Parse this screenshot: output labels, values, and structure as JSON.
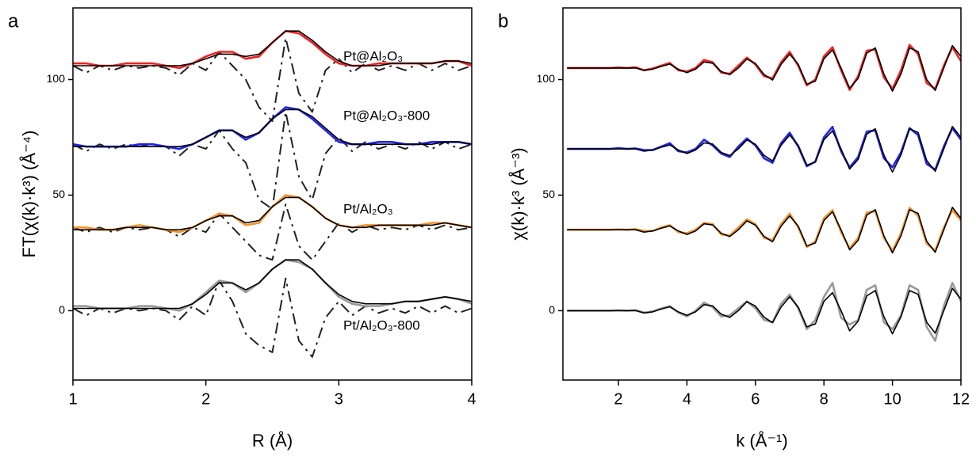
{
  "chart_data": [
    {
      "type": "line",
      "panel_label": "a",
      "x_label": "R (Å)",
      "y_label": "FT(χ(k)·k³) (Å⁻⁴)",
      "xlim": [
        1,
        4
      ],
      "ylim": [
        -30,
        131
      ],
      "xticks": [
        1,
        2,
        3,
        4
      ],
      "yticks": [
        0,
        50,
        100
      ],
      "x": [
        1.0,
        1.1,
        1.2,
        1.3,
        1.4,
        1.5,
        1.6,
        1.7,
        1.8,
        1.9,
        2.0,
        2.1,
        2.2,
        2.3,
        2.4,
        2.5,
        2.6,
        2.7,
        2.8,
        2.9,
        3.0,
        3.1,
        3.2,
        3.3,
        3.4,
        3.5,
        3.6,
        3.7,
        3.8,
        3.9,
        4.0
      ],
      "series": [
        {
          "style": "dashed",
          "color": "#222222",
          "values": [
            106,
            103,
            106,
            104,
            106,
            105,
            106,
            105,
            102,
            107,
            104,
            112,
            106,
            100,
            88,
            82,
            118,
            94,
            86,
            104,
            109,
            103,
            107,
            104,
            106,
            104,
            107,
            104,
            107,
            104,
            106
          ]
        },
        {
          "name": "Pt@Al₂O₃",
          "style": "solid",
          "color": "#ee2222",
          "values": [
            107,
            107,
            106,
            106,
            107,
            107,
            107,
            106,
            105,
            107,
            110,
            112,
            112,
            109,
            110,
            116,
            121,
            120,
            116,
            111,
            107,
            106,
            106,
            107,
            107,
            107,
            107,
            107,
            108,
            108,
            106
          ]
        },
        {
          "style": "fit",
          "color": "#000000",
          "values": [
            106,
            106,
            106,
            106,
            106,
            106,
            106,
            106,
            106,
            107,
            109,
            111,
            111,
            110,
            111,
            116,
            121,
            121,
            117,
            112,
            108,
            106,
            106,
            106,
            107,
            107,
            107,
            107,
            108,
            108,
            107
          ]
        },
        {
          "style": "dashed",
          "color": "#222222",
          "values": [
            72,
            69,
            72,
            70,
            72,
            71,
            72,
            71,
            67,
            72,
            70,
            78,
            70,
            64,
            48,
            44,
            86,
            58,
            48,
            68,
            75,
            69,
            73,
            70,
            72,
            70,
            73,
            70,
            73,
            70,
            72
          ]
        },
        {
          "name": "Pt@Al₂O₃-800",
          "style": "solid",
          "color": "#2222ee",
          "values": [
            72,
            71,
            71,
            71,
            71,
            72,
            72,
            71,
            70,
            72,
            75,
            78,
            78,
            74,
            77,
            83,
            88,
            87,
            83,
            78,
            73,
            72,
            72,
            73,
            73,
            72,
            72,
            73,
            73,
            73,
            72
          ]
        },
        {
          "style": "fit",
          "color": "#000000",
          "values": [
            71,
            71,
            71,
            71,
            71,
            71,
            71,
            71,
            71,
            72,
            75,
            78,
            78,
            75,
            77,
            83,
            87,
            87,
            84,
            79,
            74,
            72,
            72,
            72,
            72,
            72,
            72,
            72,
            73,
            73,
            72
          ]
        },
        {
          "style": "dashed",
          "color": "#222222",
          "values": [
            36,
            34,
            36,
            34,
            36,
            35,
            36,
            35,
            32,
            36,
            34,
            42,
            36,
            30,
            24,
            22,
            46,
            28,
            22,
            30,
            38,
            34,
            37,
            35,
            36,
            35,
            37,
            35,
            37,
            35,
            36
          ]
        },
        {
          "name": "Pt/Al₂O₃",
          "style": "solid",
          "color": "#f5922a",
          "values": [
            36,
            36,
            35,
            35,
            36,
            37,
            36,
            35,
            34,
            36,
            39,
            42,
            41,
            37,
            38,
            45,
            50,
            49,
            45,
            40,
            37,
            36,
            37,
            37,
            37,
            37,
            37,
            38,
            38,
            37,
            36
          ]
        },
        {
          "style": "fit",
          "color": "#000000",
          "values": [
            35,
            35,
            35,
            35,
            36,
            36,
            36,
            35,
            35,
            36,
            39,
            41,
            41,
            38,
            39,
            45,
            49,
            49,
            45,
            40,
            37,
            36,
            36,
            37,
            37,
            37,
            37,
            37,
            38,
            37,
            36
          ]
        },
        {
          "style": "dashed",
          "color": "#222222",
          "values": [
            1,
            -2,
            1,
            -1,
            1,
            0,
            1,
            0,
            -4,
            2,
            -2,
            13,
            4,
            -10,
            -15,
            -18,
            14,
            -13,
            -20,
            -3,
            4,
            -2,
            2,
            -1,
            1,
            -1,
            2,
            -1,
            2,
            -1,
            1
          ]
        },
        {
          "name": "Pt/Al₂O₃-800",
          "style": "solid",
          "color": "#999999",
          "values": [
            2,
            2,
            1,
            1,
            1,
            2,
            2,
            1,
            0,
            3,
            8,
            13,
            12,
            8,
            12,
            18,
            22,
            21,
            18,
            12,
            6,
            3,
            2,
            2,
            3,
            4,
            4,
            5,
            6,
            5,
            3
          ]
        },
        {
          "style": "fit",
          "color": "#000000",
          "values": [
            1,
            1,
            1,
            1,
            1,
            1,
            1,
            1,
            1,
            3,
            7,
            12,
            12,
            9,
            12,
            18,
            22,
            22,
            18,
            12,
            7,
            4,
            3,
            3,
            3,
            4,
            4,
            5,
            6,
            5,
            4
          ]
        }
      ]
    },
    {
      "type": "line",
      "panel_label": "b",
      "x_label": "k (Å⁻¹)",
      "y_label": "χ(k)·k³ (Å⁻³)",
      "xlim": [
        0.38,
        12
      ],
      "ylim": [
        -30,
        131
      ],
      "xticks": [
        2,
        4,
        6,
        8,
        10,
        12
      ],
      "yticks": [
        0,
        50,
        100
      ],
      "x": [
        0.5,
        0.75,
        1.0,
        1.25,
        1.5,
        1.75,
        2.0,
        2.25,
        2.5,
        2.75,
        3.0,
        3.25,
        3.5,
        3.75,
        4.0,
        4.25,
        4.5,
        4.75,
        5.0,
        5.25,
        5.5,
        5.75,
        6.0,
        6.25,
        6.5,
        6.75,
        7.0,
        7.25,
        7.5,
        7.75,
        8.0,
        8.25,
        8.5,
        8.75,
        9.0,
        9.25,
        9.5,
        9.75,
        10.0,
        10.25,
        10.5,
        10.75,
        11.0,
        11.25,
        11.5,
        11.75,
        12.0
      ],
      "series": [
        {
          "style": "solid",
          "color": "#ee2222",
          "values": [
            105,
            105,
            105,
            105,
            105,
            105,
            105.2,
            105,
            105.3,
            104,
            104.8,
            106,
            107.2,
            104,
            103.5,
            105,
            108.5,
            107.5,
            103,
            102.5,
            106,
            109.5,
            106.5,
            101.5,
            100.5,
            107.5,
            112,
            106,
            97.5,
            100,
            110,
            114,
            104,
            95.5,
            101.5,
            112.5,
            113,
            101,
            96,
            104,
            115,
            111,
            98.5,
            96,
            106,
            114,
            108
          ]
        },
        {
          "style": "fit",
          "color": "#000000",
          "values": [
            105,
            105,
            105,
            105,
            105,
            105,
            105,
            105,
            105,
            104,
            104.5,
            105.7,
            106.7,
            104.5,
            103,
            104.5,
            107.6,
            107.1,
            103.5,
            102.1,
            105,
            108.9,
            107,
            102.2,
            99.8,
            106.6,
            111,
            106.6,
            98,
            99.3,
            109,
            112.8,
            105,
            96.3,
            100.5,
            111.4,
            113.7,
            102.4,
            95,
            102.4,
            113.7,
            112.1,
            100,
            95.3,
            105,
            114.7,
            110
          ]
        },
        {
          "style": "solid",
          "color": "#2222ee",
          "values": [
            70,
            70,
            70,
            70,
            70,
            70,
            70.3,
            70,
            70.2,
            69.5,
            69.5,
            71,
            72.5,
            69,
            68.5,
            70,
            74,
            71.5,
            68,
            66.5,
            71,
            74.5,
            71.5,
            66,
            64,
            72.5,
            77,
            71,
            62.5,
            64.5,
            75,
            79.5,
            69,
            62,
            66.5,
            77.5,
            78,
            66,
            62,
            68.5,
            79,
            76,
            63.5,
            61,
            71,
            79,
            74
          ]
        },
        {
          "style": "fit",
          "color": "#000000",
          "values": [
            70,
            70,
            70,
            70,
            70,
            70,
            70,
            70,
            70,
            69,
            69.5,
            70.7,
            71.7,
            69.5,
            68,
            69.5,
            72.6,
            72.1,
            68.5,
            67.1,
            70,
            73.9,
            72,
            67.2,
            64.8,
            71.6,
            76,
            71.6,
            63,
            64.3,
            74,
            77.8,
            70,
            61.3,
            65.5,
            76.4,
            78.7,
            67.4,
            60,
            67.4,
            78.7,
            77.1,
            65,
            60.3,
            70,
            79.7,
            75
          ]
        },
        {
          "style": "solid",
          "color": "#f5922a",
          "values": [
            35,
            35,
            35,
            35,
            35,
            35,
            35.2,
            35,
            35.3,
            34.5,
            34.5,
            36,
            37,
            34,
            33.5,
            35,
            38,
            37.5,
            33,
            32.5,
            36,
            39.5,
            37.5,
            31.5,
            30.5,
            37.5,
            42,
            36,
            27.5,
            30,
            40,
            43.5,
            34,
            27,
            31.5,
            42.5,
            43,
            31.5,
            26,
            33.5,
            44.5,
            41,
            29,
            26,
            36,
            43.5,
            39
          ]
        },
        {
          "style": "fit",
          "color": "#000000",
          "values": [
            35,
            35,
            35,
            35,
            35,
            35,
            35,
            35,
            35,
            34,
            34.5,
            35.7,
            36.7,
            34.5,
            33,
            34.5,
            37.6,
            37.1,
            33.5,
            32.1,
            35,
            38.9,
            37,
            32.2,
            29.8,
            36.6,
            41,
            36.6,
            28,
            29.3,
            39,
            42.8,
            35,
            26.3,
            30.5,
            41.4,
            43.7,
            32.4,
            25,
            32.4,
            43.7,
            42.1,
            30,
            25.3,
            35,
            44.7,
            40
          ]
        },
        {
          "style": "solid",
          "color": "#999999",
          "values": [
            0,
            0,
            0,
            0,
            0,
            0,
            0.2,
            0,
            0.3,
            -0.8,
            -0.3,
            1,
            2,
            -0.8,
            -2.5,
            0,
            3.5,
            1.5,
            -2.5,
            -2,
            1,
            4,
            1,
            -4,
            -5,
            3,
            7,
            1,
            -8,
            -4,
            6,
            12,
            -3,
            -6,
            -4,
            9,
            11,
            -5,
            -8,
            -2,
            11,
            9,
            -7,
            -13,
            2,
            12,
            4
          ]
        },
        {
          "style": "fit",
          "color": "#000000",
          "values": [
            0,
            0,
            0,
            0,
            0,
            0,
            0,
            0,
            0,
            -1,
            -0.5,
            0.7,
            1.7,
            -0.5,
            -2,
            -0.5,
            2.6,
            2.1,
            -1.5,
            -2.9,
            0,
            3.9,
            2,
            -2.8,
            -5.2,
            1.6,
            6,
            1.6,
            -7,
            -5.7,
            4,
            7.8,
            0,
            -8.7,
            -4.5,
            6.4,
            8.7,
            -2.6,
            -10,
            -2.6,
            8.7,
            7.1,
            -5,
            -9.7,
            0,
            9.7,
            5
          ]
        }
      ]
    }
  ]
}
